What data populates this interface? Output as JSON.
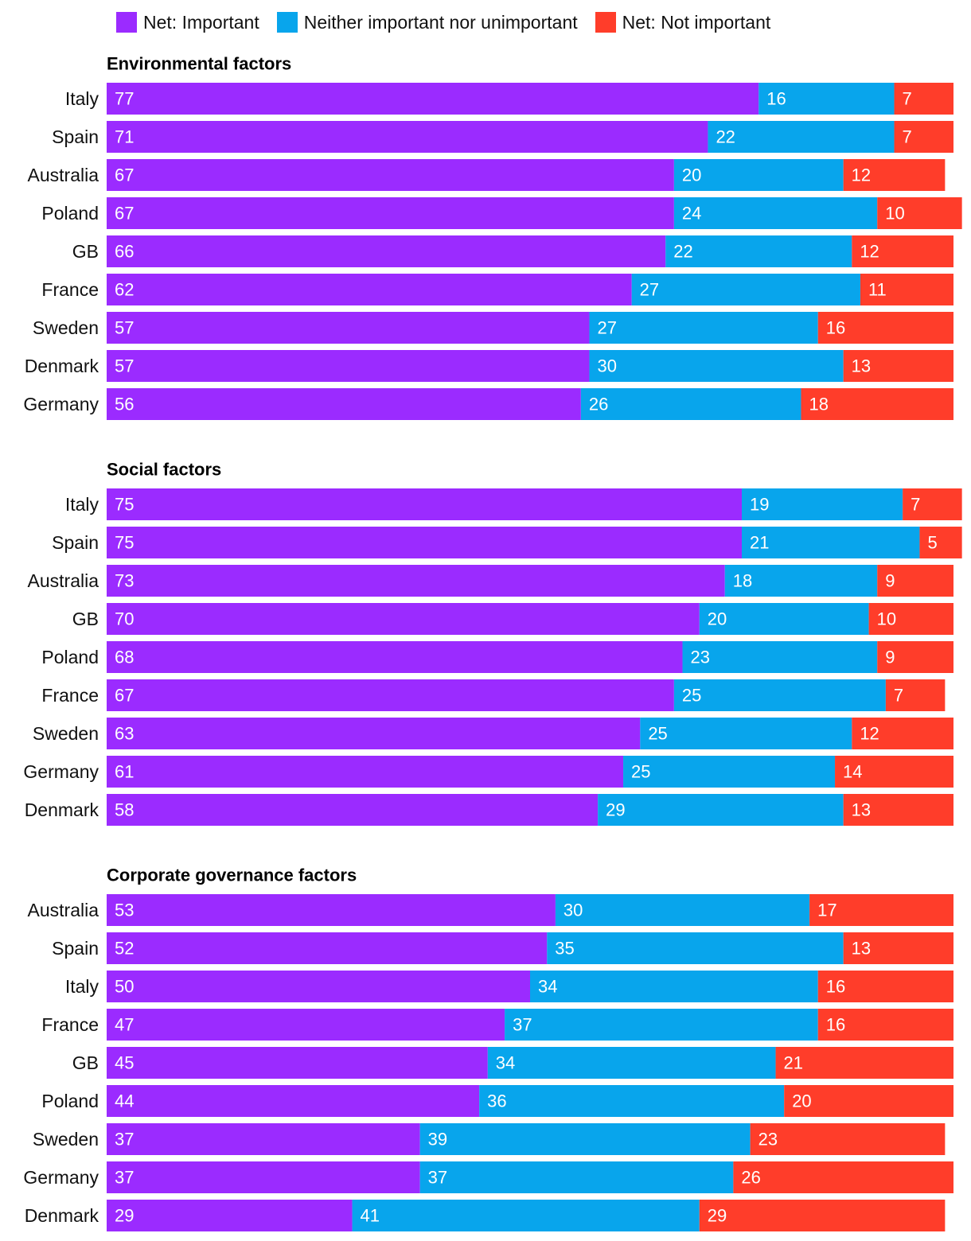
{
  "legend": [
    {
      "label": "Net: Important",
      "color": "#9b2bff"
    },
    {
      "label": "Neither important nor unimportant",
      "color": "#08a5ec"
    },
    {
      "label": "Net: Not important",
      "color": "#ff3d2a"
    }
  ],
  "chart_data": [
    {
      "type": "bar",
      "orientation": "horizontal",
      "stacked": true,
      "title": "Environmental factors",
      "categories": [
        "Italy",
        "Spain",
        "Australia",
        "Poland",
        "GB",
        "France",
        "Sweden",
        "Denmark",
        "Germany"
      ],
      "series": [
        {
          "name": "Net: Important",
          "values": [
            77,
            71,
            67,
            67,
            66,
            62,
            57,
            57,
            56
          ]
        },
        {
          "name": "Neither important nor unimportant",
          "values": [
            16,
            22,
            20,
            24,
            22,
            27,
            27,
            30,
            26
          ]
        },
        {
          "name": "Net: Not important",
          "values": [
            7,
            7,
            12,
            10,
            12,
            11,
            16,
            13,
            18
          ]
        }
      ]
    },
    {
      "type": "bar",
      "orientation": "horizontal",
      "stacked": true,
      "title": "Social factors",
      "categories": [
        "Italy",
        "Spain",
        "Australia",
        "GB",
        "Poland",
        "France",
        "Sweden",
        "Germany",
        "Denmark"
      ],
      "series": [
        {
          "name": "Net: Important",
          "values": [
            75,
            75,
            73,
            70,
            68,
            67,
            63,
            61,
            58
          ]
        },
        {
          "name": "Neither important nor unimportant",
          "values": [
            19,
            21,
            18,
            20,
            23,
            25,
            25,
            25,
            29
          ]
        },
        {
          "name": "Net: Not important",
          "values": [
            7,
            5,
            9,
            10,
            9,
            7,
            12,
            14,
            13
          ]
        }
      ]
    },
    {
      "type": "bar",
      "orientation": "horizontal",
      "stacked": true,
      "title": "Corporate governance factors",
      "categories": [
        "Australia",
        "Spain",
        "Italy",
        "France",
        "GB",
        "Poland",
        "Sweden",
        "Germany",
        "Denmark"
      ],
      "series": [
        {
          "name": "Net: Important",
          "values": [
            53,
            52,
            50,
            47,
            45,
            44,
            37,
            37,
            29
          ]
        },
        {
          "name": "Neither important nor unimportant",
          "values": [
            30,
            35,
            34,
            37,
            34,
            36,
            39,
            37,
            41
          ]
        },
        {
          "name": "Net: Not important",
          "values": [
            17,
            13,
            16,
            16,
            21,
            20,
            23,
            26,
            29
          ]
        }
      ]
    }
  ]
}
